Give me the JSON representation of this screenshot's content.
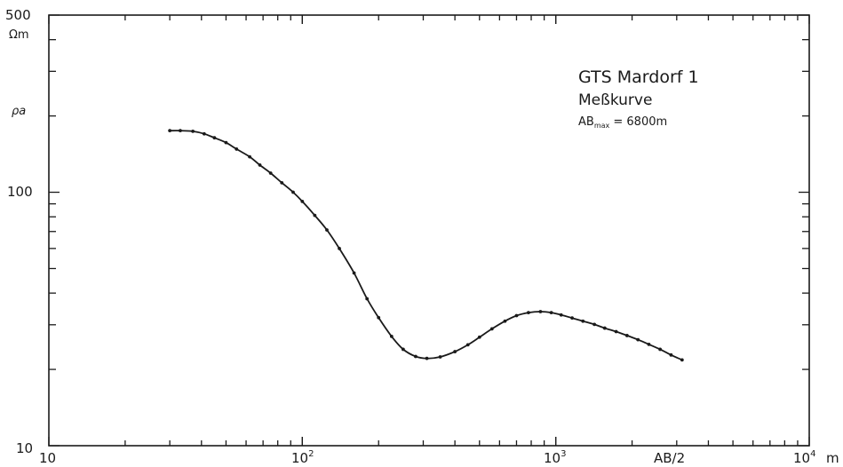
{
  "chart_data": {
    "type": "line",
    "title": "GTS Mardorf 1",
    "subtitle": "Meßkurve",
    "annotation": {
      "prefix": "AB",
      "subscript": "max",
      "suffix": " = 6800m"
    },
    "xlabel": "AB/2",
    "xunit": "m",
    "ylabel": "ρa",
    "yunit": "Ωm",
    "xscale": "log",
    "yscale": "log",
    "xlim": [
      10,
      10000
    ],
    "ylim": [
      10,
      500
    ],
    "x_tick_labels": [
      {
        "value": 10,
        "base": "10",
        "exp": ""
      },
      {
        "value": 100,
        "base": "10",
        "exp": "2"
      },
      {
        "value": 1000,
        "base": "10",
        "exp": "3"
      },
      {
        "value": 10000,
        "base": "10",
        "exp": "4"
      }
    ],
    "y_tick_labels": [
      {
        "value": 10,
        "text": "10"
      },
      {
        "value": 100,
        "text": "100"
      },
      {
        "value": 500,
        "text": "500"
      }
    ],
    "grid": false,
    "series": [
      {
        "x": [
          30,
          33,
          37,
          41,
          45,
          50,
          55,
          62,
          68,
          75,
          83,
          92,
          100,
          112,
          125,
          140,
          160,
          180,
          200,
          225,
          250,
          280,
          310,
          350,
          400,
          450,
          500,
          560,
          630,
          700,
          780,
          870,
          960,
          1050,
          1160,
          1280,
          1420,
          1560,
          1730,
          1910,
          2110,
          2330,
          2580,
          2850,
          3150
        ],
        "y": [
          175,
          175,
          174,
          170,
          164,
          157,
          148,
          138,
          128,
          119,
          109,
          100,
          92,
          81,
          71,
          60,
          48,
          38,
          32,
          27,
          24,
          22.5,
          22.1,
          22.4,
          23.5,
          25,
          26.8,
          28.9,
          31,
          32.6,
          33.5,
          33.8,
          33.5,
          32.8,
          31.9,
          31,
          30.1,
          29.1,
          28.2,
          27.2,
          26.2,
          25.1,
          24,
          22.8,
          21.8
        ]
      }
    ]
  }
}
